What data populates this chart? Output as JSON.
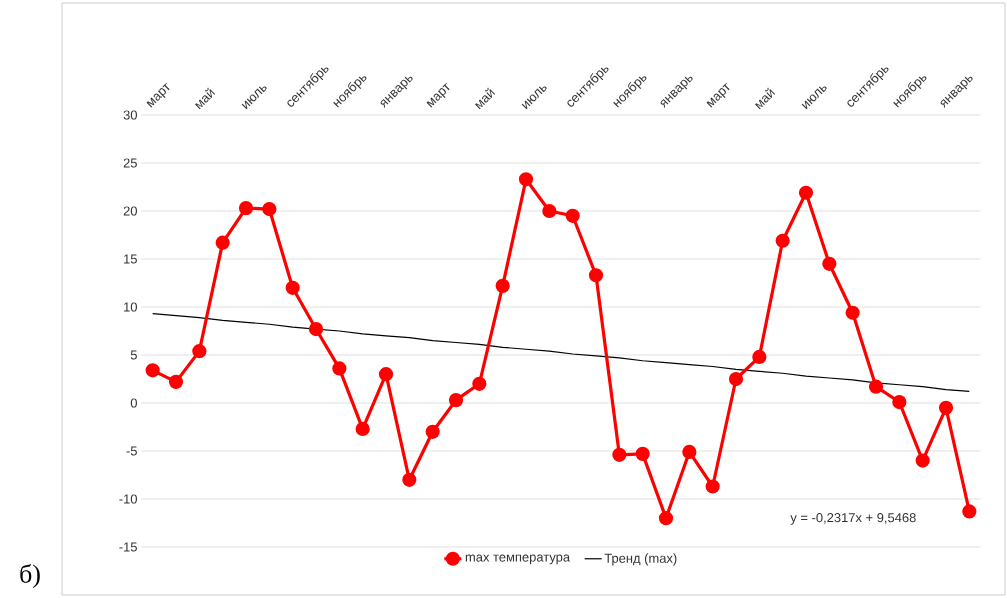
{
  "chart_data": {
    "type": "line",
    "categories": [
      "март",
      null,
      "май",
      null,
      "июль",
      null,
      "сентябрь",
      null,
      "ноябрь",
      null,
      "январь",
      null,
      "март",
      null,
      "май",
      null,
      "июль",
      null,
      "сентябрь",
      null,
      "ноябрь",
      null,
      "январь",
      null,
      "март",
      null,
      "май",
      null,
      "июль",
      null,
      "сентябрь",
      null,
      "ноябрь",
      null,
      "январь",
      null
    ],
    "series": [
      {
        "name": "max температура",
        "color": "#ff0000",
        "marker": "circle",
        "values": [
          3.4,
          2.2,
          5.4,
          16.7,
          20.3,
          20.2,
          12.0,
          7.7,
          3.6,
          -2.7,
          3.0,
          -8.0,
          -3.0,
          0.3,
          2.0,
          12.2,
          23.3,
          20.0,
          19.5,
          13.3,
          -5.4,
          -5.3,
          -12.0,
          -5.1,
          -8.7,
          2.5,
          4.8,
          16.9,
          21.9,
          14.5,
          9.4,
          1.7,
          0.1,
          -6.0,
          -0.5,
          -11.3
        ]
      },
      {
        "name": "Тренд (max)",
        "color": "#000000",
        "marker": "none",
        "values": [
          9.3,
          9.1,
          8.9,
          8.6,
          8.4,
          8.2,
          7.9,
          7.7,
          7.5,
          7.2,
          7.0,
          6.8,
          6.5,
          6.3,
          6.1,
          5.8,
          5.6,
          5.4,
          5.1,
          4.9,
          4.7,
          4.4,
          4.2,
          4.0,
          3.8,
          3.5,
          3.3,
          3.1,
          2.8,
          2.6,
          2.4,
          2.1,
          1.9,
          1.7,
          1.4,
          1.2
        ]
      }
    ],
    "ylim": [
      -15,
      30
    ],
    "yticks": [
      -15,
      -10,
      -5,
      0,
      5,
      10,
      15,
      20,
      25,
      30
    ],
    "grid": "y",
    "legend": "bottom",
    "annotations": [
      "y = -0,2317x + 9,5468",
      "б)"
    ]
  }
}
